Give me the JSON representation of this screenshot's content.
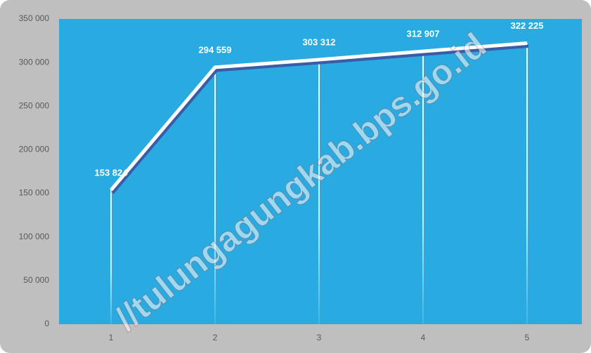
{
  "chart_data": {
    "type": "line",
    "categories": [
      "1",
      "2",
      "3",
      "4",
      "5"
    ],
    "values": [
      153824,
      294559,
      303312,
      312907,
      322225
    ],
    "value_labels": [
      "153 824",
      "294 559",
      "303 312",
      "312 907",
      "322 225"
    ],
    "color": "#ffffff",
    "ylim": [
      0,
      350000
    ],
    "yticks": [
      0,
      {
        "value": 50000,
        "label": "50 000"
      },
      {
        "value": 100000,
        "label": "100 000"
      },
      {
        "value": 150000,
        "label": "150 000"
      },
      {
        "value": 200000,
        "label": "200 000"
      },
      {
        "value": 250000,
        "label": "250 000"
      },
      {
        "value": 300000,
        "label": "300 000"
      },
      {
        "value": 350000,
        "label": "350 000"
      }
    ],
    "grid": false,
    "watermark": "//tulungagungkab.bps.go.id"
  }
}
